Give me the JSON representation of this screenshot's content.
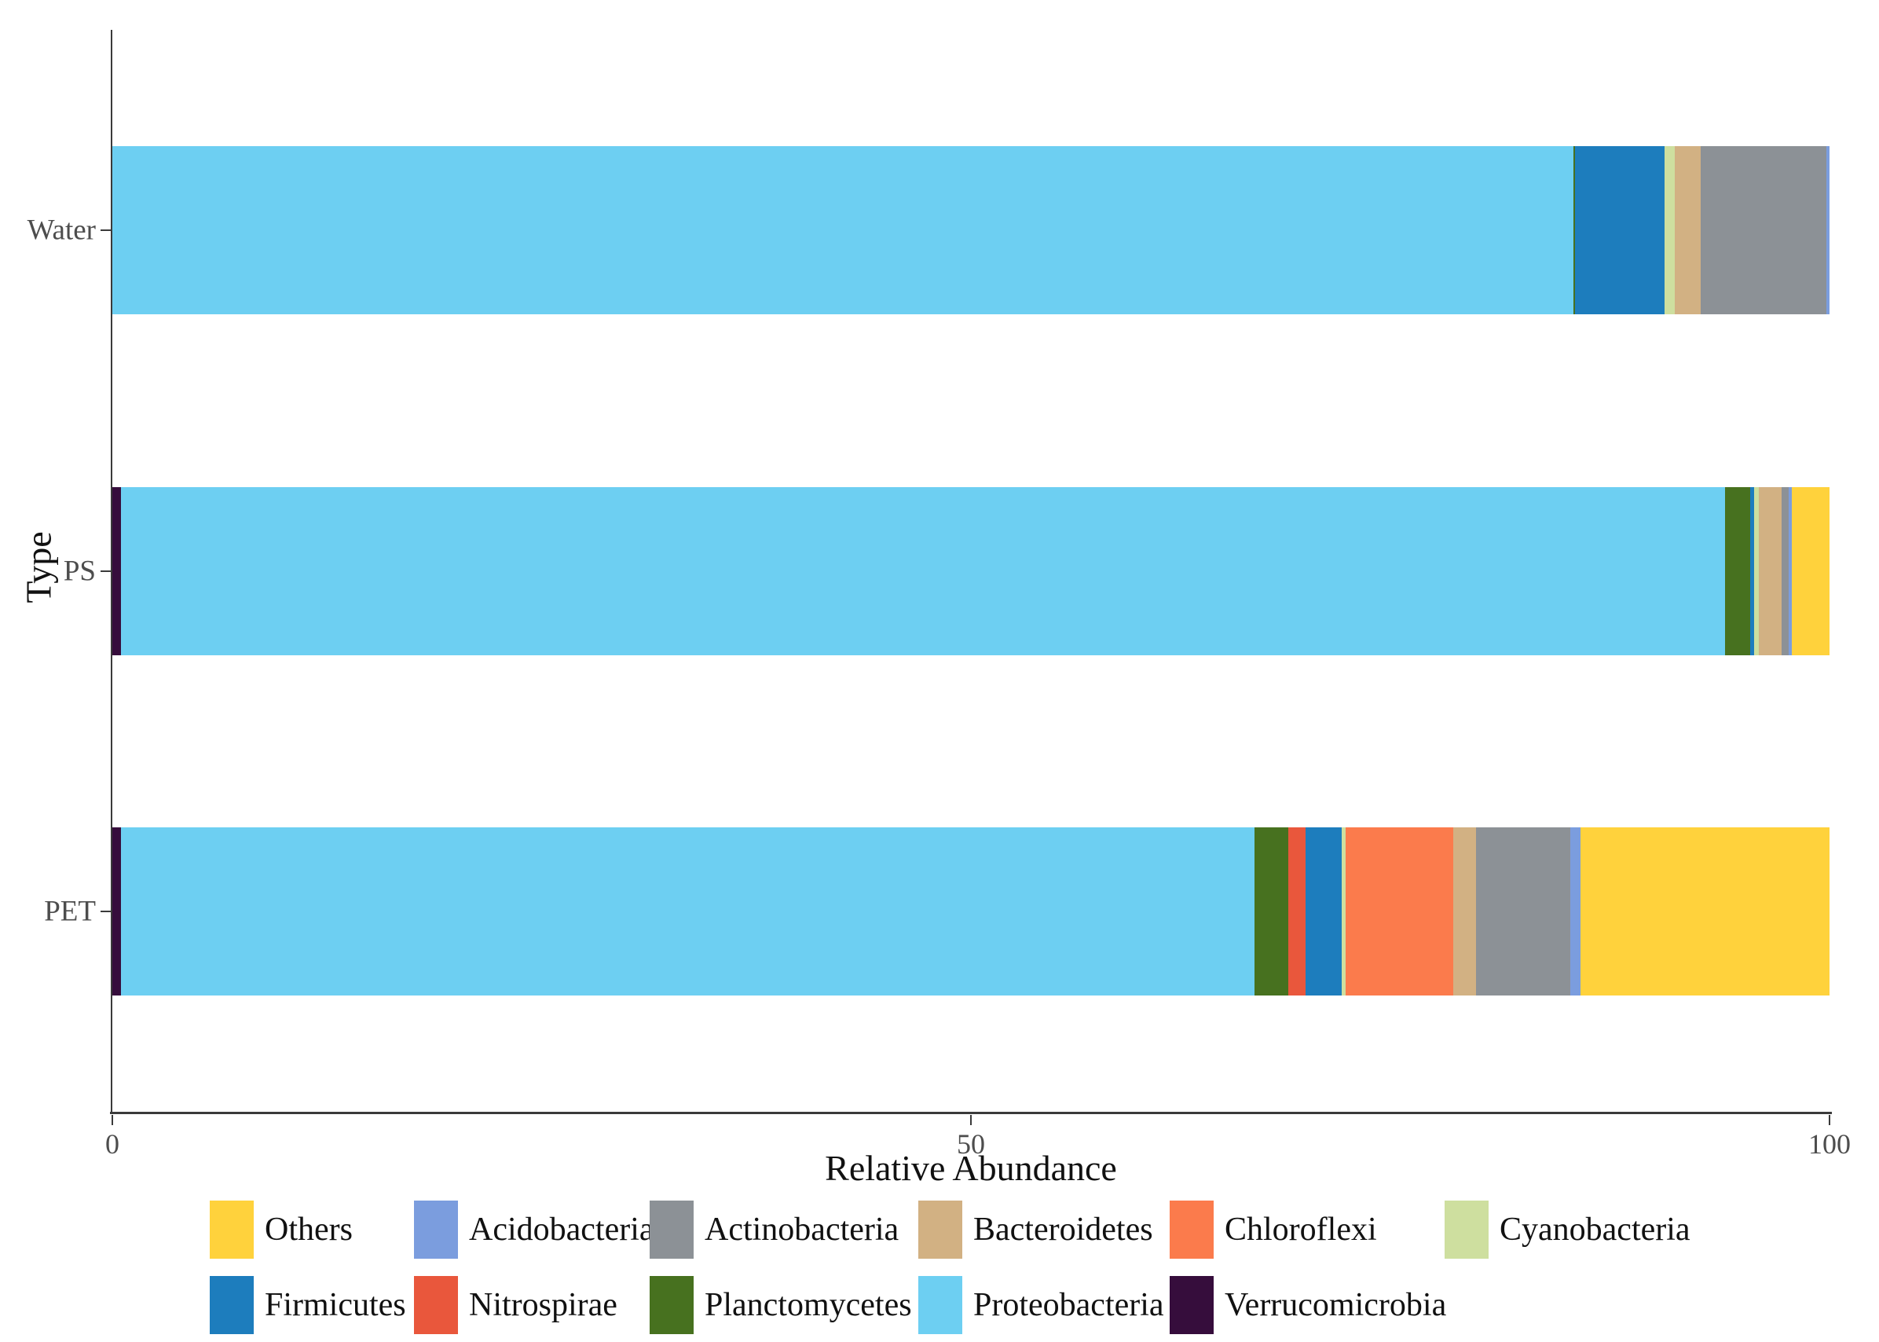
{
  "axes": {
    "x_title": "Relative Abundance",
    "y_title": "Type",
    "x_tick_labels": [
      "0",
      "50",
      "100"
    ],
    "y_tick_labels": [
      "Water",
      "PS",
      "PET"
    ]
  },
  "chart_data": {
    "type": "bar",
    "orientation": "horizontal",
    "stacked": true,
    "title": "",
    "xlabel": "Relative Abundance",
    "ylabel": "Type",
    "xlim": [
      0,
      100
    ],
    "x_ticks": [
      0,
      50,
      100
    ],
    "grid": false,
    "categories": [
      "Water",
      "PS",
      "PET"
    ],
    "stack_order": [
      "Verrucomicrobia",
      "Proteobacteria",
      "Planctomycetes",
      "Nitrospirae",
      "Firmicutes",
      "Cyanobacteria",
      "Chloroflexi",
      "Bacteroidetes",
      "Actinobacteria",
      "Acidobacteria",
      "Others"
    ],
    "series": [
      {
        "name": "Others",
        "color": "#FFD23C",
        "values": {
          "Water": 0,
          "PS": 2.2,
          "PET": 14.5
        }
      },
      {
        "name": "Acidobacteria",
        "color": "#7B9DDE",
        "values": {
          "Water": 0.2,
          "PS": 0.2,
          "PET": 0.6
        }
      },
      {
        "name": "Actinobacteria",
        "color": "#8C9196",
        "values": {
          "Water": 7.3,
          "PS": 0.4,
          "PET": 5.5
        }
      },
      {
        "name": "Bacteroidetes",
        "color": "#D2B183",
        "values": {
          "Water": 1.5,
          "PS": 1.3,
          "PET": 1.3
        }
      },
      {
        "name": "Chloroflexi",
        "color": "#FB7B4C",
        "values": {
          "Water": 0,
          "PS": 0,
          "PET": 6.3
        }
      },
      {
        "name": "Cyanobacteria",
        "color": "#CEDF9F",
        "values": {
          "Water": 0.6,
          "PS": 0.3,
          "PET": 0.2
        }
      },
      {
        "name": "Firmicutes",
        "color": "#1D7DBD",
        "values": {
          "Water": 5.2,
          "PS": 0.2,
          "PET": 2.1
        }
      },
      {
        "name": "Nitrospirae",
        "color": "#E9573C",
        "values": {
          "Water": 0,
          "PS": 0,
          "PET": 1.0
        }
      },
      {
        "name": "Planctomycetes",
        "color": "#47711F",
        "values": {
          "Water": 0.1,
          "PS": 1.5,
          "PET": 2.0
        }
      },
      {
        "name": "Proteobacteria",
        "color": "#6DCFF2",
        "values": {
          "Water": 85.1,
          "PS": 93.4,
          "PET": 66.0
        }
      },
      {
        "name": "Verrucomicrobia",
        "color": "#360D3C",
        "values": {
          "Water": 0,
          "PS": 0.5,
          "PET": 0.5
        }
      }
    ],
    "legend": {
      "position": "bottom",
      "rows": [
        [
          "Others",
          "Acidobacteria",
          "Actinobacteria",
          "Bacteroidetes",
          "Chloroflexi",
          "Cyanobacteria"
        ],
        [
          "Firmicutes",
          "Nitrospirae",
          "Planctomycetes",
          "Proteobacteria",
          "Verrucomicrobia"
        ]
      ]
    }
  }
}
